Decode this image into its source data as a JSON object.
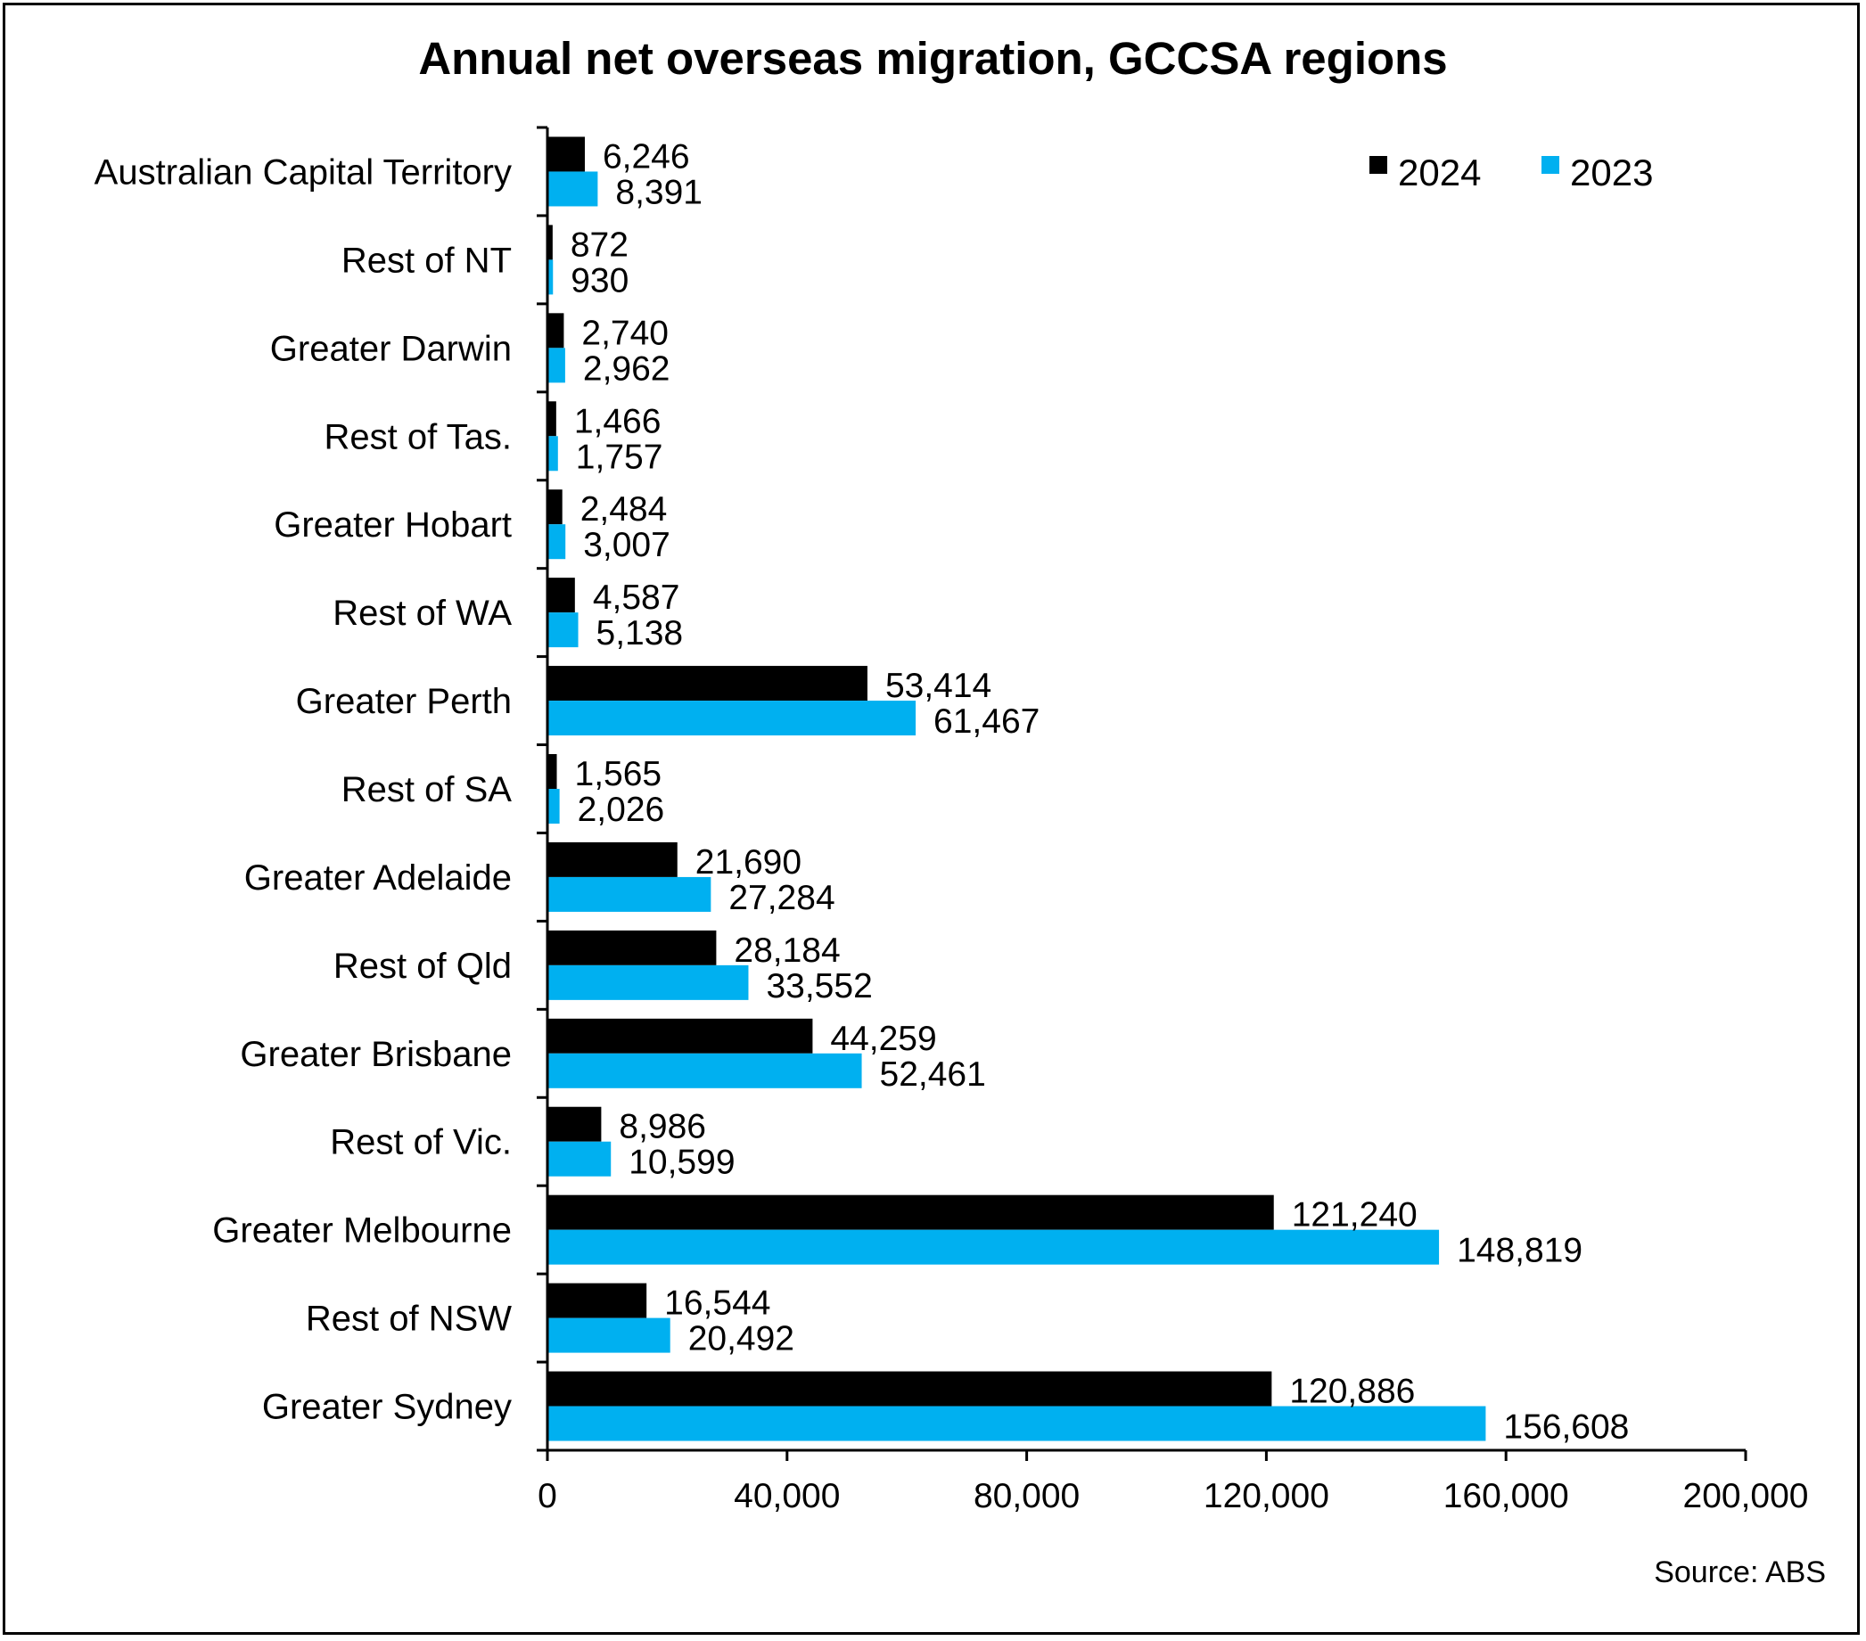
{
  "chart_data": {
    "type": "bar",
    "orientation": "horizontal",
    "title": "Annual net overseas migration, GCCSA regions",
    "source": "Source: ABS",
    "xlim": [
      0,
      200000
    ],
    "xticks": [
      0,
      40000,
      80000,
      120000,
      160000,
      200000
    ],
    "xtick_labels": [
      "0",
      "40,000",
      "80,000",
      "120,000",
      "160,000",
      "200,000"
    ],
    "legend_position": "top-right",
    "grid": false,
    "categories": [
      "Australian Capital Territory",
      "Rest of NT",
      "Greater Darwin",
      "Rest of Tas.",
      "Greater Hobart",
      "Rest of WA",
      "Greater Perth",
      "Rest of SA",
      "Greater Adelaide",
      "Rest of Qld",
      "Greater Brisbane",
      "Rest of Vic.",
      "Greater Melbourne",
      "Rest of NSW",
      "Greater Sydney"
    ],
    "series": [
      {
        "name": "2024",
        "color": "#000000",
        "values": [
          6246,
          872,
          2740,
          1466,
          2484,
          4587,
          53414,
          1565,
          21690,
          28184,
          44259,
          8986,
          121240,
          16544,
          120886
        ],
        "labels": [
          "6,246",
          "872",
          "2,740",
          "1,466",
          "2,484",
          "4,587",
          "53,414",
          "1,565",
          "21,690",
          "28,184",
          "44,259",
          "8,986",
          "121,240",
          "16,544",
          "120,886"
        ]
      },
      {
        "name": "2023",
        "color": "#00B0F0",
        "values": [
          8391,
          930,
          2962,
          1757,
          3007,
          5138,
          61467,
          2026,
          27284,
          33552,
          52461,
          10599,
          148819,
          20492,
          156608
        ],
        "labels": [
          "8,391",
          "930",
          "2,962",
          "1,757",
          "3,007",
          "5,138",
          "61,467",
          "2,026",
          "27,284",
          "33,552",
          "52,461",
          "10,599",
          "148,819",
          "20,492",
          "156,608"
        ]
      }
    ]
  }
}
